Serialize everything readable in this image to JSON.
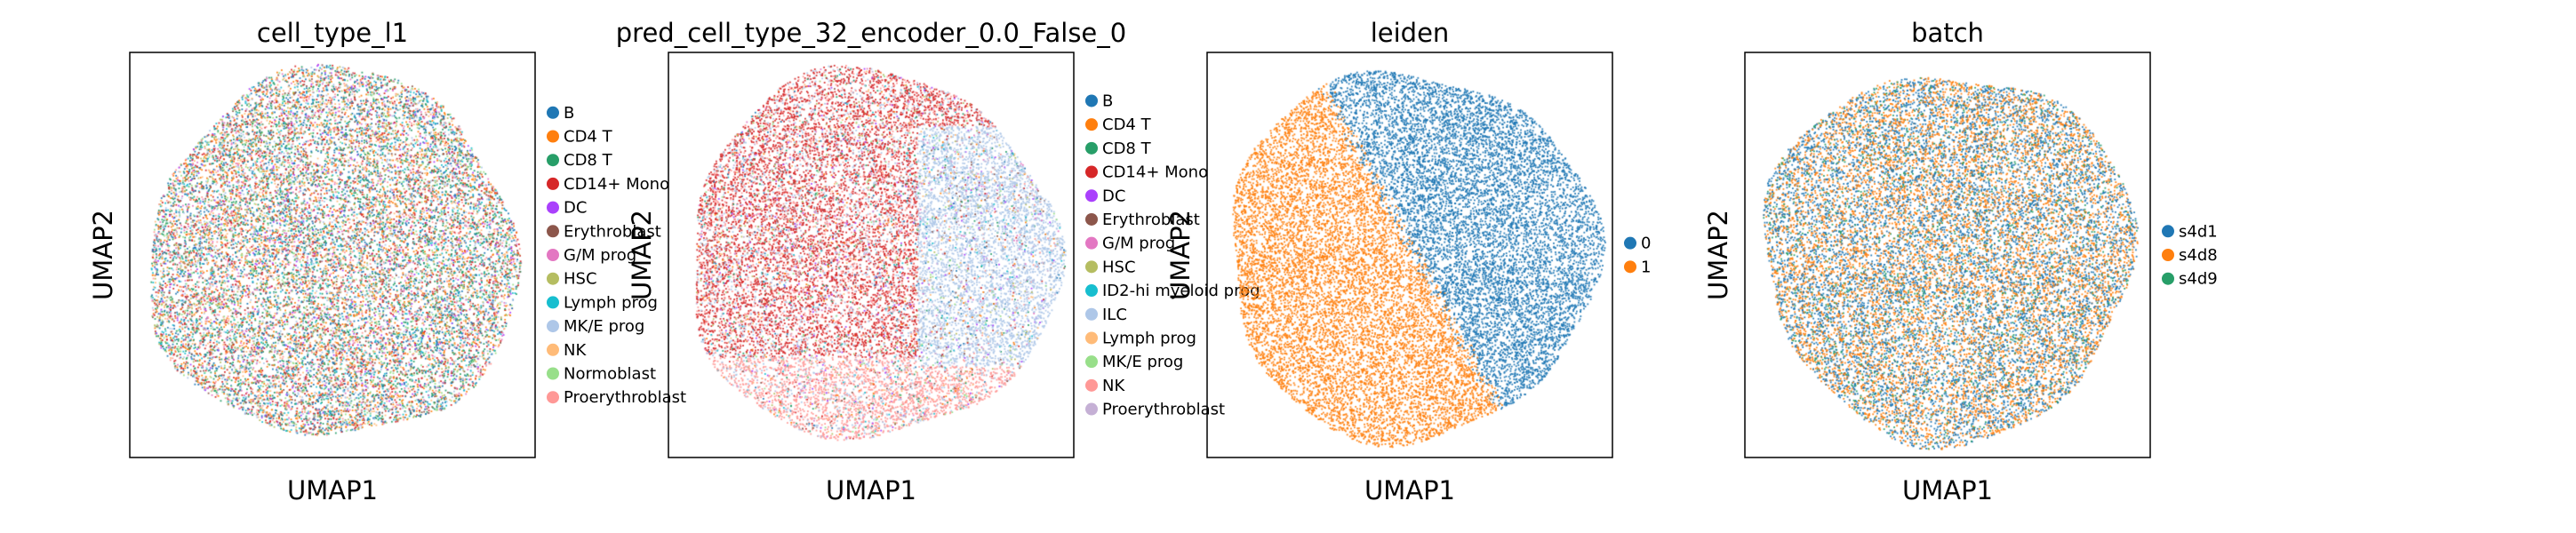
{
  "chart_data": [
    {
      "type": "scatter",
      "title": "cell_type_l1",
      "xlabel": "UMAP1",
      "ylabel": "UMAP2",
      "mix": "random",
      "legend": [
        {
          "label": "B",
          "color": "#1f77b4"
        },
        {
          "label": "CD4 T",
          "color": "#ff7f0e"
        },
        {
          "label": "CD8 T",
          "color": "#279e68"
        },
        {
          "label": "CD14+ Mono",
          "color": "#d62728"
        },
        {
          "label": "DC",
          "color": "#aa40fc"
        },
        {
          "label": "Erythroblast",
          "color": "#8c564b"
        },
        {
          "label": "G/M prog",
          "color": "#e377c2"
        },
        {
          "label": "HSC",
          "color": "#b5bd61"
        },
        {
          "label": "Lymph prog",
          "color": "#17becf"
        },
        {
          "label": "MK/E prog",
          "color": "#aec7e8"
        },
        {
          "label": "NK",
          "color": "#ffbb78"
        },
        {
          "label": "Normoblast",
          "color": "#98df8a"
        },
        {
          "label": "Proerythroblast",
          "color": "#ff9896"
        }
      ]
    },
    {
      "type": "scatter",
      "title": "pred_cell_type_32_encoder_0.0_False_0",
      "xlabel": "UMAP1",
      "ylabel": "UMAP2",
      "mix": "pred",
      "legend": [
        {
          "label": "B",
          "color": "#1f77b4"
        },
        {
          "label": "CD4 T",
          "color": "#ff7f0e"
        },
        {
          "label": "CD8 T",
          "color": "#279e68"
        },
        {
          "label": "CD14+ Mono",
          "color": "#d62728"
        },
        {
          "label": "DC",
          "color": "#aa40fc"
        },
        {
          "label": "Erythroblast",
          "color": "#8c564b"
        },
        {
          "label": "G/M prog",
          "color": "#e377c2"
        },
        {
          "label": "HSC",
          "color": "#b5bd61"
        },
        {
          "label": "ID2-hi myeloid prog",
          "color": "#17becf"
        },
        {
          "label": "ILC",
          "color": "#aec7e8"
        },
        {
          "label": "Lymph prog",
          "color": "#ffbb78"
        },
        {
          "label": "MK/E prog",
          "color": "#98df8a"
        },
        {
          "label": "NK",
          "color": "#ff9896"
        },
        {
          "label": "Proerythroblast",
          "color": "#c5b0d5"
        }
      ]
    },
    {
      "type": "scatter",
      "title": "leiden",
      "xlabel": "UMAP1",
      "ylabel": "UMAP2",
      "mix": "leiden",
      "legend": [
        {
          "label": "0",
          "color": "#1f77b4"
        },
        {
          "label": "1",
          "color": "#ff7f0e"
        }
      ]
    },
    {
      "type": "scatter",
      "title": "batch",
      "xlabel": "UMAP1",
      "ylabel": "UMAP2",
      "mix": "random",
      "legend": [
        {
          "label": "s4d1",
          "color": "#1f77b4"
        },
        {
          "label": "s4d8",
          "color": "#ff7f0e"
        },
        {
          "label": "s4d9",
          "color": "#279e68"
        }
      ]
    }
  ]
}
